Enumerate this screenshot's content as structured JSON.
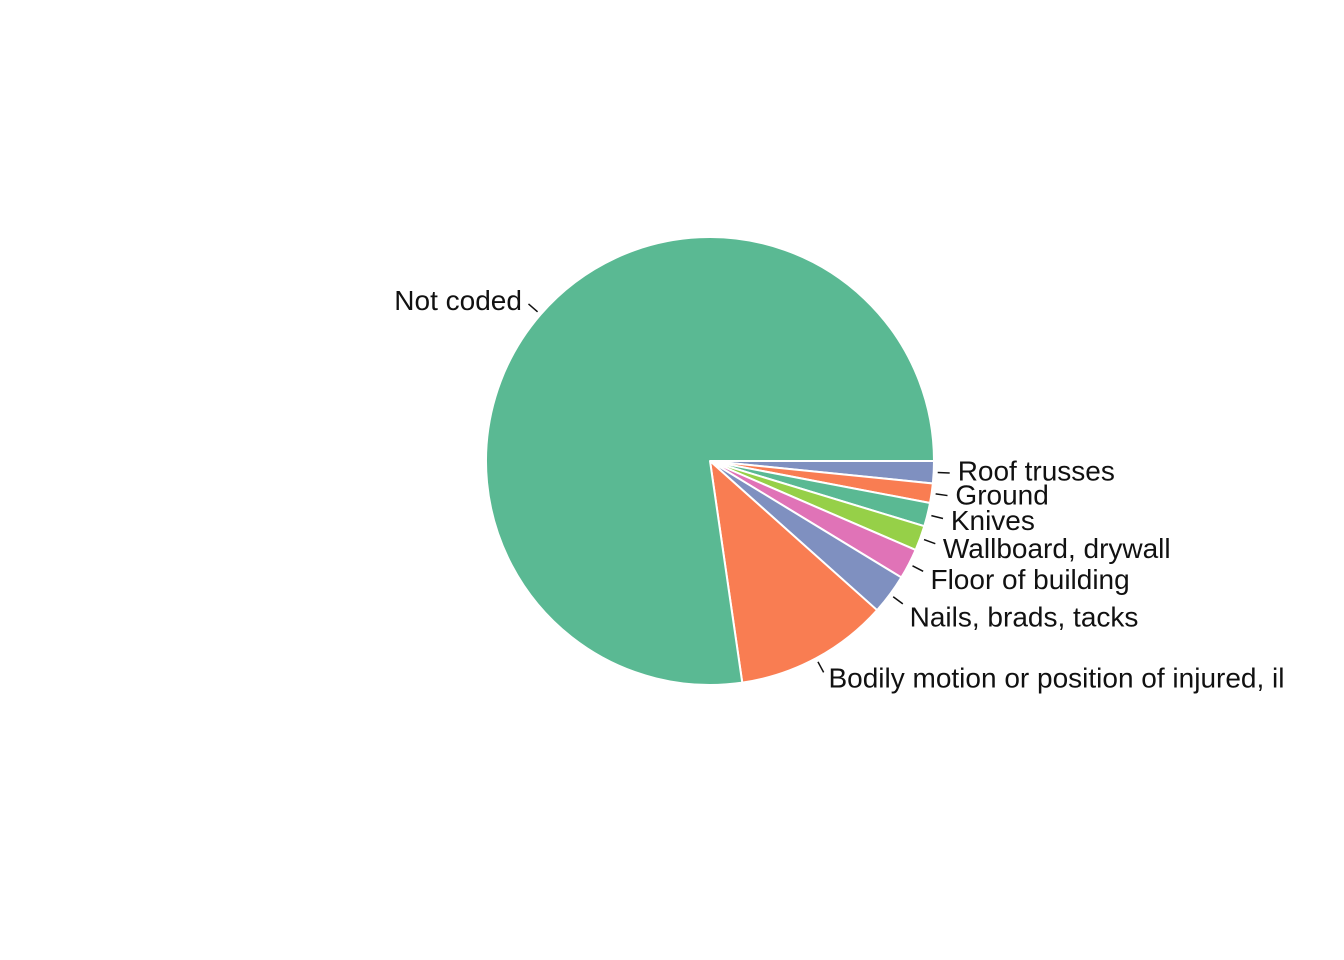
{
  "chart_data": {
    "type": "pie",
    "title": "",
    "start_angle_deg": 0,
    "direction": "clockwise",
    "slices": [
      {
        "label": "Roof trusses",
        "value": 1.6,
        "color": "#7f90c0"
      },
      {
        "label": "Ground",
        "value": 1.4,
        "color": "#f97d52"
      },
      {
        "label": "Knives",
        "value": 1.7,
        "color": "#5ab993"
      },
      {
        "label": "Wallboard, drywall",
        "value": 1.8,
        "color": "#96d048"
      },
      {
        "label": "Floor of building",
        "value": 2.2,
        "color": "#e073b7"
      },
      {
        "label": "Nails, brads, tacks",
        "value": 2.9,
        "color": "#7f90c0"
      },
      {
        "label": "Bodily motion or position of injured, il",
        "value": 11.1,
        "color": "#f97d52"
      },
      {
        "label": "Not coded",
        "value": 77.3,
        "color": "#5ab993"
      }
    ],
    "legend": "none"
  }
}
